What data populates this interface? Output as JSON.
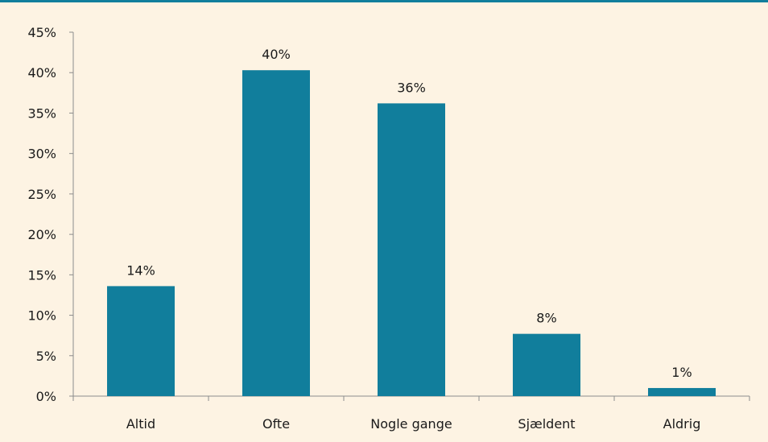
{
  "colors": {
    "background": "#fdf3e3",
    "bar": "#117e9c",
    "top_rule": "#117e9c",
    "axis": "#8c8c8c",
    "text": "#1a1a1a"
  },
  "chart_data": {
    "type": "bar",
    "categories": [
      "Altid",
      "Ofte",
      "Nogle gange",
      "Sjældent",
      "Aldrig"
    ],
    "values": [
      13.6,
      40.3,
      36.2,
      7.7,
      1.0
    ],
    "data_labels": [
      "14%",
      "40%",
      "36%",
      "8%",
      "1%"
    ],
    "ylim": [
      0,
      45
    ],
    "yticks": [
      0,
      5,
      10,
      15,
      20,
      25,
      30,
      35,
      40,
      45
    ],
    "ytick_labels": [
      "0%",
      "5%",
      "10%",
      "15%",
      "20%",
      "25%",
      "30%",
      "35%",
      "40%",
      "45%"
    ],
    "grid": false,
    "legend": "none"
  }
}
